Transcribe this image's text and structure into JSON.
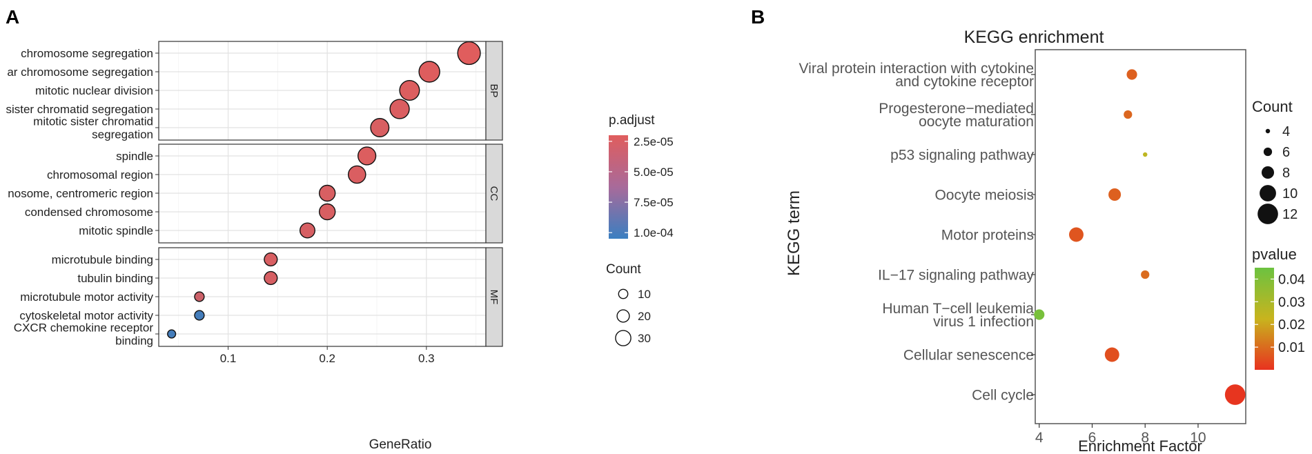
{
  "panels": {
    "a_label": "A",
    "b_label": "B"
  },
  "chart_data": [
    {
      "type": "scatter",
      "subtype": "faceted-dot-plot",
      "title": "",
      "xlabel": "GeneRatio",
      "ylabel": "",
      "xlim": [
        0.03,
        0.36
      ],
      "xticks": [
        0.1,
        0.2,
        0.3
      ],
      "xtick_labels": [
        "0.1",
        "0.2",
        "0.3"
      ],
      "grid": true,
      "facets": [
        {
          "name": "BP",
          "terms": [
            {
              "label": "chromosome segregation",
              "x": 0.343,
              "count": 34,
              "p_adjust": 2e-05
            },
            {
              "label": "ar chromosome segregation",
              "x": 0.303,
              "count": 30,
              "p_adjust": 2.1e-05
            },
            {
              "label": "mitotic nuclear division",
              "x": 0.283,
              "count": 28,
              "p_adjust": 2.2e-05
            },
            {
              "label": "sister chromatid segregation",
              "x": 0.273,
              "count": 27,
              "p_adjust": 2.3e-05
            },
            {
              "label": "mitotic sister chromatid\nsegregation",
              "x": 0.253,
              "count": 25,
              "p_adjust": 2.4e-05
            }
          ]
        },
        {
          "name": "CC",
          "terms": [
            {
              "label": "spindle",
              "x": 0.24,
              "count": 24,
              "p_adjust": 2.2e-05
            },
            {
              "label": "chromosomal region",
              "x": 0.23,
              "count": 23,
              "p_adjust": 2.3e-05
            },
            {
              "label": "nosome, centromeric region",
              "x": 0.2,
              "count": 20,
              "p_adjust": 2.4e-05
            },
            {
              "label": "condensed chromosome",
              "x": 0.2,
              "count": 20,
              "p_adjust": 2.4e-05
            },
            {
              "label": "mitotic spindle",
              "x": 0.18,
              "count": 18,
              "p_adjust": 2.5e-05
            }
          ]
        },
        {
          "name": "MF",
          "terms": [
            {
              "label": "microtubule binding",
              "x": 0.143,
              "count": 14,
              "p_adjust": 2.4e-05
            },
            {
              "label": "tubulin binding",
              "x": 0.143,
              "count": 14,
              "p_adjust": 2.5e-05
            },
            {
              "label": "microtubule motor activity",
              "x": 0.071,
              "count": 7,
              "p_adjust": 3e-05
            },
            {
              "label": "cytoskeletal motor activity",
              "x": 0.071,
              "count": 7,
              "p_adjust": 0.0001
            },
            {
              "label": "CXCR chemokine receptor\nbinding",
              "x": 0.043,
              "count": 4,
              "p_adjust": 0.0001
            }
          ]
        }
      ],
      "color_legend": {
        "title": "p.adjust",
        "range": [
          2e-05,
          0.000105
        ],
        "ticks": [
          2.5e-05,
          5e-05,
          7.5e-05,
          0.0001
        ],
        "tick_labels": [
          "2.5e-05",
          "5.0e-05",
          "7.5e-05",
          "1.0e-04"
        ],
        "low_color": "#e05d5d",
        "high_color": "#3a7fc1"
      },
      "size_legend": {
        "title": "Count",
        "values": [
          10,
          20,
          30
        ],
        "labels": [
          "10",
          "20",
          "30"
        ]
      }
    },
    {
      "type": "scatter",
      "subtype": "dot-plot",
      "title": "KEGG enrichment",
      "xlabel": "Enrichment Factor",
      "ylabel": "KEGG term",
      "xlim": [
        3.85,
        11.8
      ],
      "xticks": [
        4,
        6,
        8,
        10
      ],
      "xtick_labels": [
        "4",
        "6",
        "8",
        "10"
      ],
      "grid": false,
      "terms": [
        {
          "label": "Viral protein interaction with cytokine\nand cytokine receptor",
          "x": 7.5,
          "count": 7,
          "pvalue": 0.008
        },
        {
          "label": "Progesterone−mediated\noocyte maturation",
          "x": 7.35,
          "count": 6,
          "pvalue": 0.009
        },
        {
          "label": "p53 signaling pathway",
          "x": 8.0,
          "count": 4,
          "pvalue": 0.025
        },
        {
          "label": "Oocyte meiosis",
          "x": 6.85,
          "count": 8,
          "pvalue": 0.008
        },
        {
          "label": "Motor proteins",
          "x": 5.4,
          "count": 9,
          "pvalue": 0.006
        },
        {
          "label": "IL−17 signaling pathway",
          "x": 8.0,
          "count": 6,
          "pvalue": 0.01
        },
        {
          "label": "Human T−cell leukemia\nvirus 1 infection",
          "x": 4.0,
          "count": 7,
          "pvalue": 0.042
        },
        {
          "label": "Cellular senescence",
          "x": 6.75,
          "count": 9,
          "pvalue": 0.005
        },
        {
          "label": "Cell cycle",
          "x": 11.4,
          "count": 12,
          "pvalue": 0.0005
        }
      ],
      "size_legend": {
        "title": "Count",
        "values": [
          4,
          6,
          8,
          10,
          12
        ],
        "labels": [
          "4",
          "6",
          "8",
          "10",
          "12"
        ]
      },
      "color_legend": {
        "title": "pvalue",
        "range": [
          0.0,
          0.045
        ],
        "ticks": [
          0.01,
          0.02,
          0.03,
          0.04
        ],
        "tick_labels": [
          "0.01",
          "0.02",
          "0.03",
          "0.04"
        ],
        "low_color": "#e8321f",
        "mid_color": "#c8b41e",
        "high_color": "#6cc240"
      }
    }
  ]
}
